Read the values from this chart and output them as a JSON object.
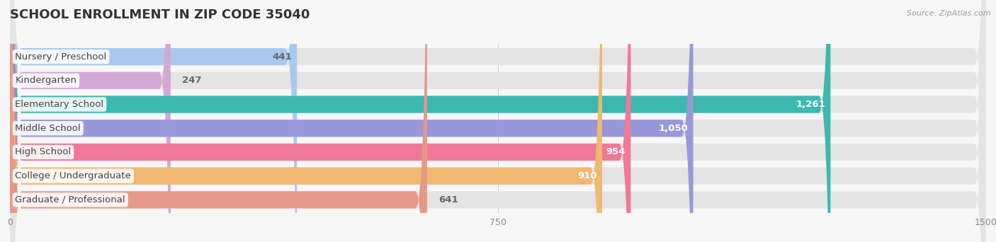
{
  "title": "SCHOOL ENROLLMENT IN ZIP CODE 35040",
  "source": "Source: ZipAtlas.com",
  "categories": [
    "Nursery / Preschool",
    "Kindergarten",
    "Elementary School",
    "Middle School",
    "High School",
    "College / Undergraduate",
    "Graduate / Professional"
  ],
  "values": [
    441,
    247,
    1261,
    1050,
    954,
    910,
    641
  ],
  "bar_colors": [
    "#a8c8f0",
    "#d4a8d4",
    "#3cb8b0",
    "#9898d8",
    "#f07898",
    "#f0b870",
    "#e89888"
  ],
  "value_label_colors": [
    "#666666",
    "#666666",
    "#ffffff",
    "#ffffff",
    "#ffffff",
    "#ffffff",
    "#666666"
  ],
  "value_label_inside": [
    true,
    false,
    true,
    true,
    true,
    true,
    false
  ],
  "xlim": [
    0,
    1500
  ],
  "xticks": [
    0,
    750,
    1500
  ],
  "background_color": "#f7f7f7",
  "bar_bg_color": "#e4e4e4",
  "title_fontsize": 13,
  "axis_label_fontsize": 9,
  "value_fontsize": 9.5,
  "cat_label_fontsize": 9.5
}
